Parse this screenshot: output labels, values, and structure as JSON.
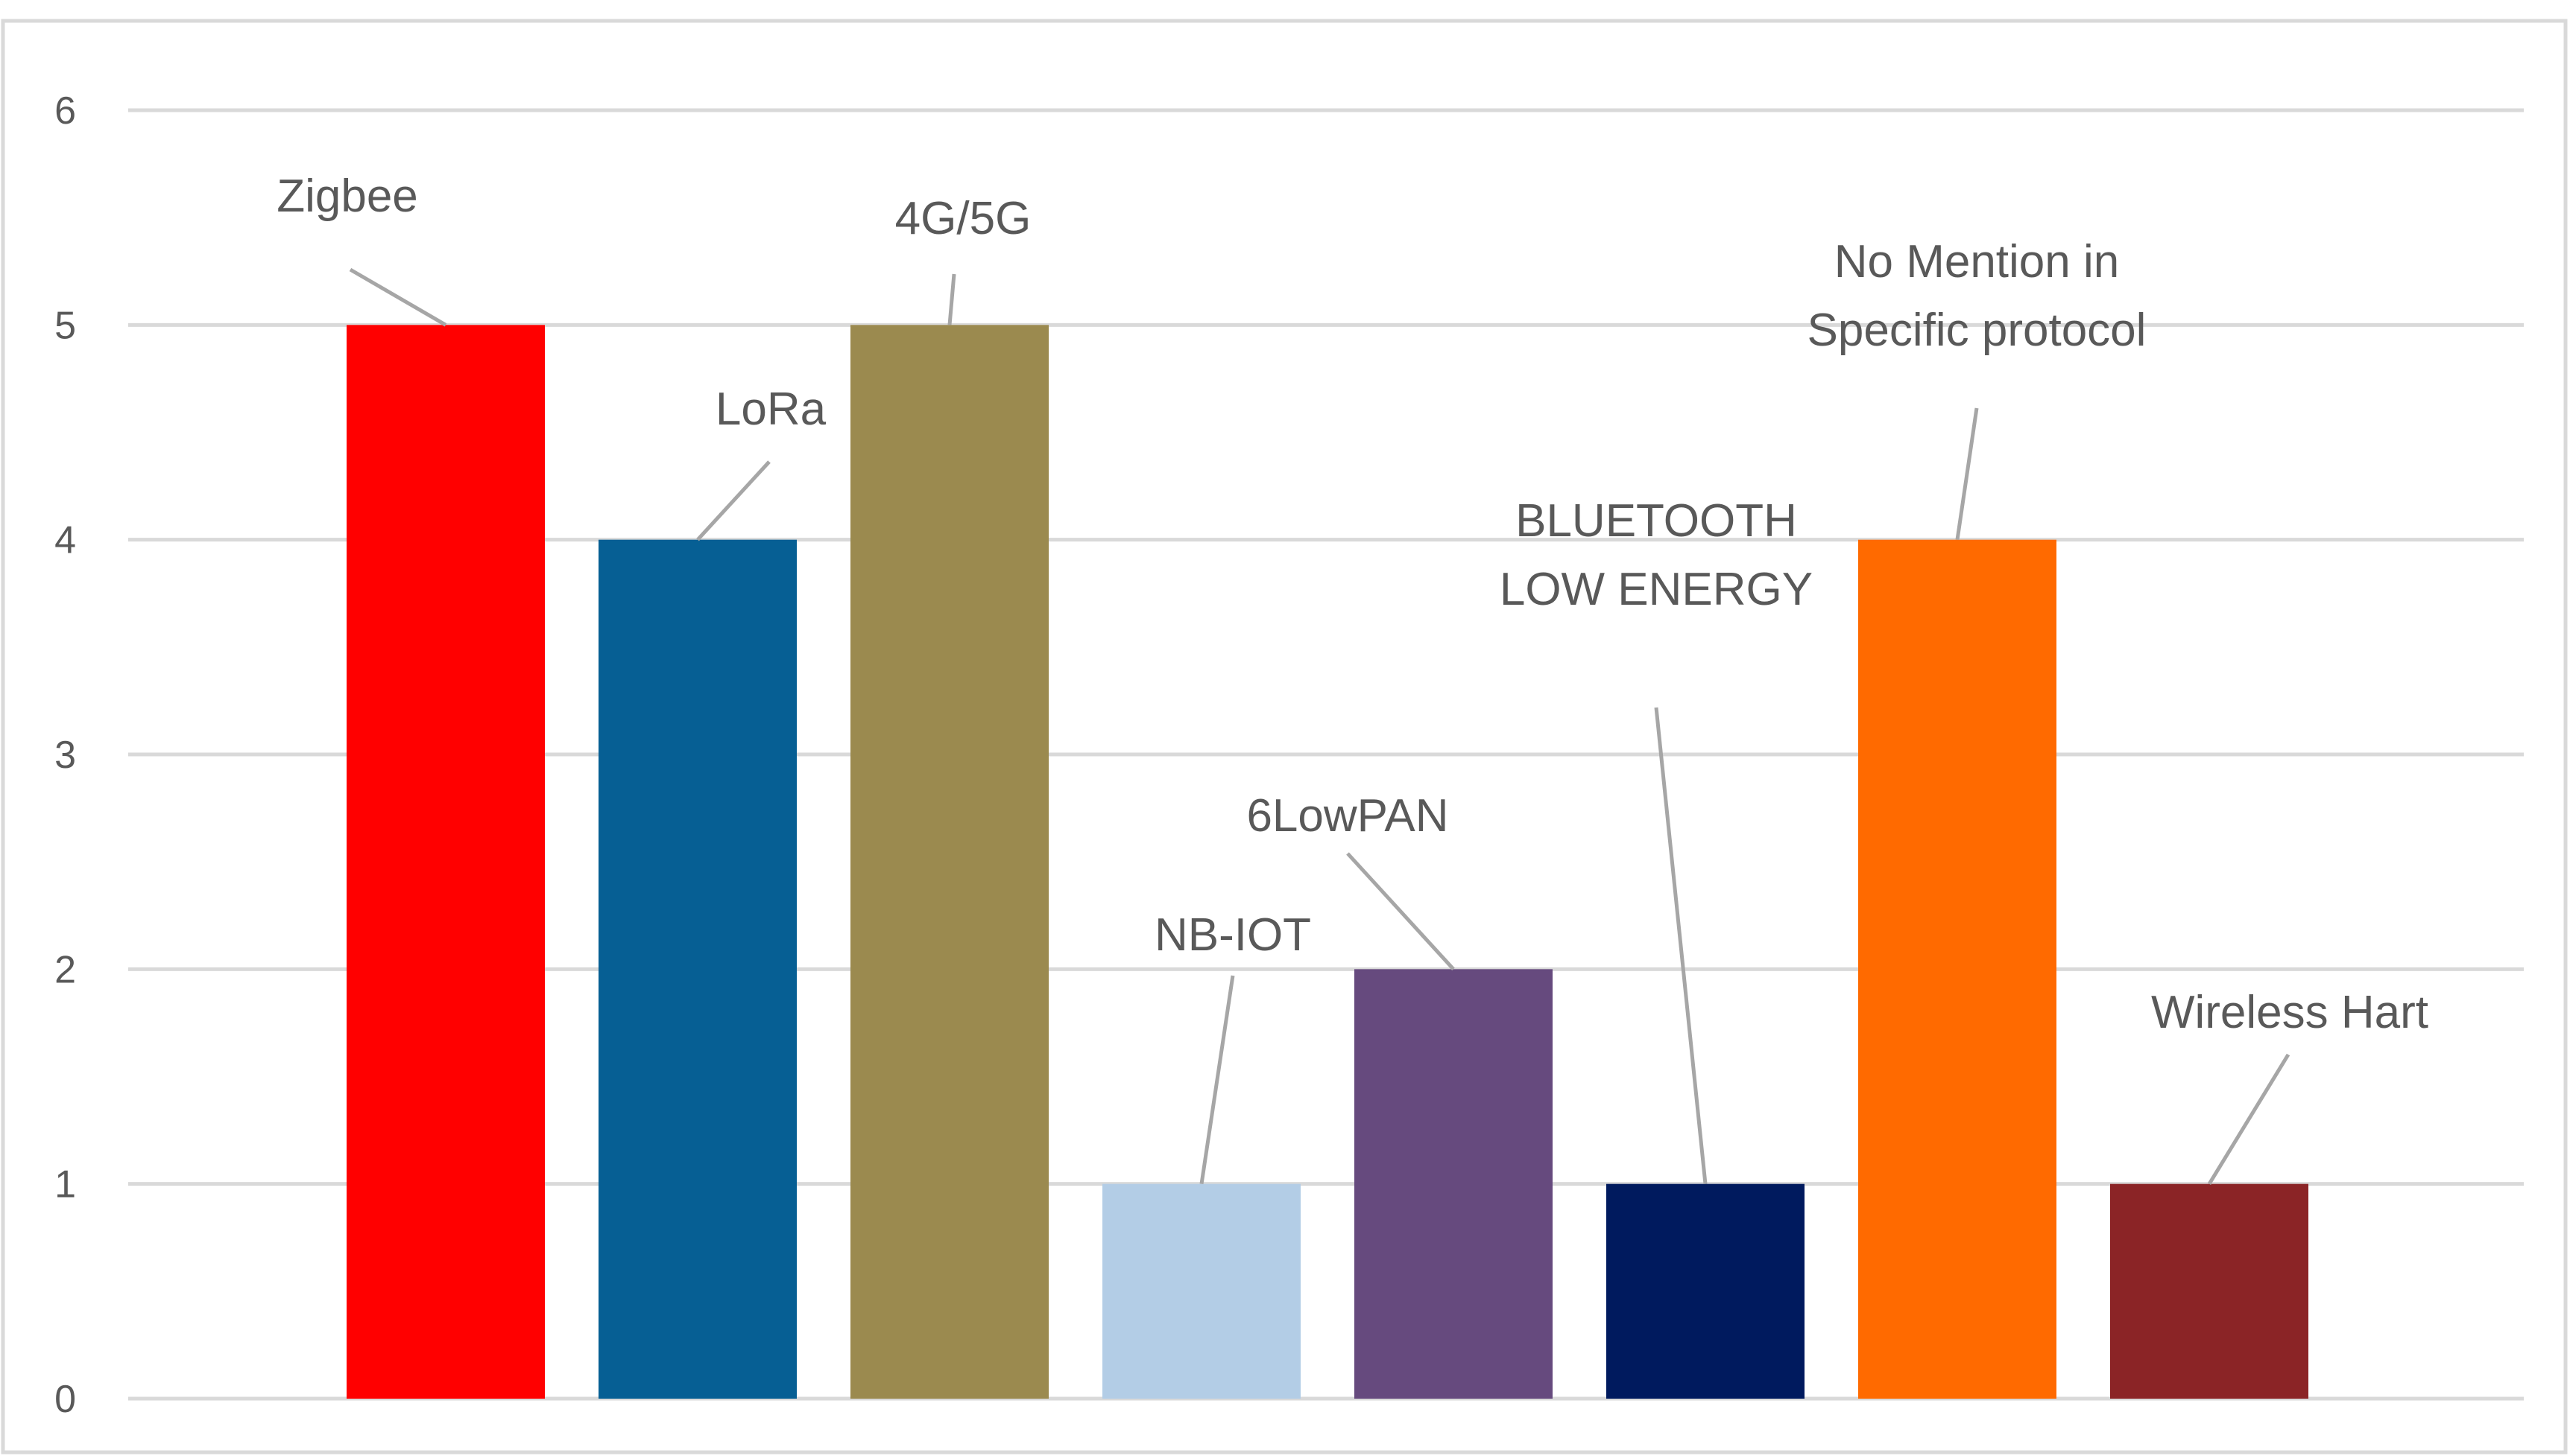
{
  "chart_data": {
    "type": "bar",
    "title": "",
    "xlabel": "",
    "ylabel": "",
    "ylim": [
      0,
      6
    ],
    "yticks": [
      0,
      1,
      2,
      3,
      4,
      5,
      6
    ],
    "grid": true,
    "legend": "none",
    "categories": [
      "Zigbee",
      "LoRa",
      "4G/5G",
      "NB-IOT",
      "6LowPAN",
      "BLUETOOTH LOW ENERGY",
      "No Mention in Specific protocol",
      "Wireless Hart"
    ],
    "values": [
      5,
      4,
      5,
      1,
      2,
      1,
      4,
      1
    ],
    "colors": [
      "#ff0000",
      "#065f94",
      "#9b8a4f",
      "#b3cde6",
      "#664a7e",
      "#001a5e",
      "#ff6a00",
      "#8b2426"
    ],
    "data_labels": [
      [
        "Zigbee"
      ],
      [
        "LoRa"
      ],
      [
        "4G/5G"
      ],
      [
        "NB-IOT"
      ],
      [
        "6LowPAN"
      ],
      [
        "BLUETOOTH",
        "LOW ENERGY"
      ],
      [
        "No Mention in",
        "Specific protocol"
      ],
      [
        "Wireless Hart"
      ]
    ]
  }
}
